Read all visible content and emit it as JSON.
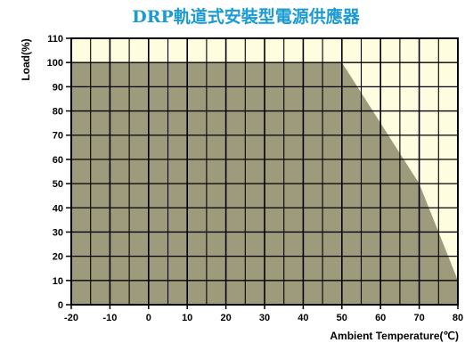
{
  "chart_data": {
    "type": "area",
    "title": "DRP軌道式安裝型電源供應器",
    "xlabel": "Ambient Temperature(℃)",
    "ylabel": "Load(%)",
    "x_ticks": [
      "-20",
      "-10",
      "0",
      "10",
      "20",
      "30",
      "40",
      "50",
      "60",
      "70",
      "80"
    ],
    "y_ticks": [
      "0",
      "10",
      "20",
      "30",
      "40",
      "50",
      "60",
      "70",
      "80",
      "90",
      "100",
      "110"
    ],
    "xlim": [
      -20,
      80
    ],
    "ylim": [
      0,
      110
    ],
    "x_minor_step": 5,
    "y_minor_step": 10,
    "grid": true,
    "legend": "none",
    "series": [
      {
        "x": [
          -20,
          50,
          70,
          80
        ],
        "y": [
          100,
          100,
          50,
          10
        ]
      }
    ],
    "colors": {
      "plot_background": "#fffddf",
      "area_fill": "#9e9a7c",
      "grid": "#000000",
      "title": "#1b9bd4"
    }
  }
}
